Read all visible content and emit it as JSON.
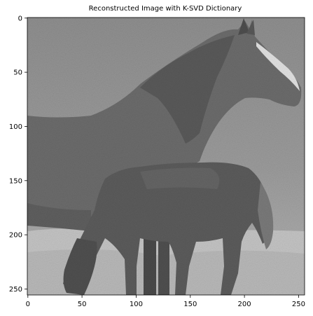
{
  "title": "Reconstructed Image with K-SVD Dictionary",
  "axes": {
    "x_ticks": [
      "0",
      "50",
      "100",
      "150",
      "200",
      "250"
    ],
    "y_ticks": [
      "0",
      "50",
      "100",
      "150",
      "200",
      "250"
    ]
  },
  "image": {
    "subject": "grayscale photo of a horse and foal standing on a grassy field",
    "colors": {
      "background_grass": "#9a9a9a",
      "meadow_bright": "#c9c9c9",
      "horse_body": "#6a6a6a",
      "foal_body": "#5b5b5b",
      "blaze": "#e8e8e8"
    }
  }
}
